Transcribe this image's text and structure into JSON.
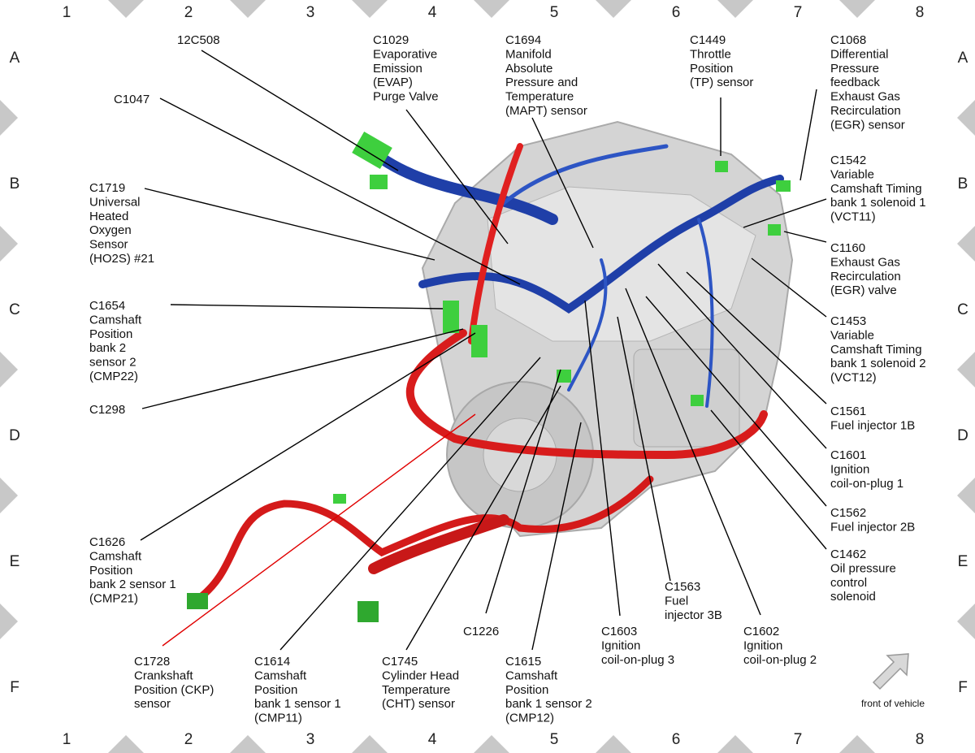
{
  "grid": {
    "columns": [
      "1",
      "2",
      "3",
      "4",
      "5",
      "6",
      "7",
      "8"
    ],
    "rows": [
      "A",
      "B",
      "C",
      "D",
      "E",
      "F"
    ]
  },
  "labels": [
    {
      "lines": [
        "12C508"
      ]
    },
    {
      "lines": [
        "C1029",
        "Evaporative",
        "Emission",
        "(EVAP)",
        "Purge Valve"
      ]
    },
    {
      "lines": [
        "C1694",
        "Manifold",
        "Absolute",
        "Pressure and",
        "Temperature",
        "(MAPT) sensor"
      ]
    },
    {
      "lines": [
        "C1449",
        "Throttle",
        "Position",
        "(TP) sensor"
      ]
    },
    {
      "lines": [
        "C1068",
        "Differential",
        "Pressure",
        "feedback",
        "Exhaust Gas",
        "Recirculation",
        "(EGR) sensor"
      ]
    },
    {
      "lines": [
        "C1047"
      ]
    },
    {
      "lines": [
        "C1719",
        "Universal",
        "Heated",
        "Oxygen",
        "Sensor",
        "(HO2S) #21"
      ]
    },
    {
      "lines": [
        "C1542",
        "Variable",
        "Camshaft Timing",
        "bank 1 solenoid 1",
        "(VCT11)"
      ]
    },
    {
      "lines": [
        "C1160",
        "Exhaust Gas",
        "Recirculation",
        "(EGR) valve"
      ]
    },
    {
      "lines": [
        "C1654",
        "Camshaft",
        "Position",
        "bank 2",
        "sensor 2",
        "(CMP22)"
      ]
    },
    {
      "lines": [
        "C1453",
        "Variable",
        "Camshaft Timing",
        "bank 1 solenoid 2",
        "(VCT12)"
      ]
    },
    {
      "lines": [
        "C1298"
      ]
    },
    {
      "lines": [
        "C1561",
        "Fuel injector 1B"
      ]
    },
    {
      "lines": [
        "C1601",
        "Ignition",
        "coil-on-plug 1"
      ]
    },
    {
      "lines": [
        "C1562",
        "Fuel injector 2B"
      ]
    },
    {
      "lines": [
        "C1626",
        "Camshaft",
        "Position",
        "bank 2 sensor 1",
        "(CMP21)"
      ]
    },
    {
      "lines": [
        "C1462",
        "Oil pressure",
        "control",
        "solenoid"
      ]
    },
    {
      "lines": [
        "C1563",
        "Fuel",
        "injector 3B"
      ]
    },
    {
      "lines": [
        "C1226"
      ]
    },
    {
      "lines": [
        "C1603",
        "Ignition",
        "coil-on-plug 3"
      ]
    },
    {
      "lines": [
        "C1602",
        "Ignition",
        "coil-on-plug 2"
      ]
    },
    {
      "lines": [
        "C1728",
        "Crankshaft",
        "Position (CKP)",
        "sensor"
      ]
    },
    {
      "lines": [
        "C1614",
        "Camshaft",
        "Position",
        "bank 1 sensor 1",
        "(CMP11)"
      ]
    },
    {
      "lines": [
        "C1745",
        "Cylinder Head",
        "Temperature",
        "(CHT) sensor"
      ]
    },
    {
      "lines": [
        "C1615",
        "Camshaft",
        "Position",
        "bank 1 sensor 2",
        "(CMP12)"
      ]
    }
  ],
  "orientation": "front of vehicle"
}
